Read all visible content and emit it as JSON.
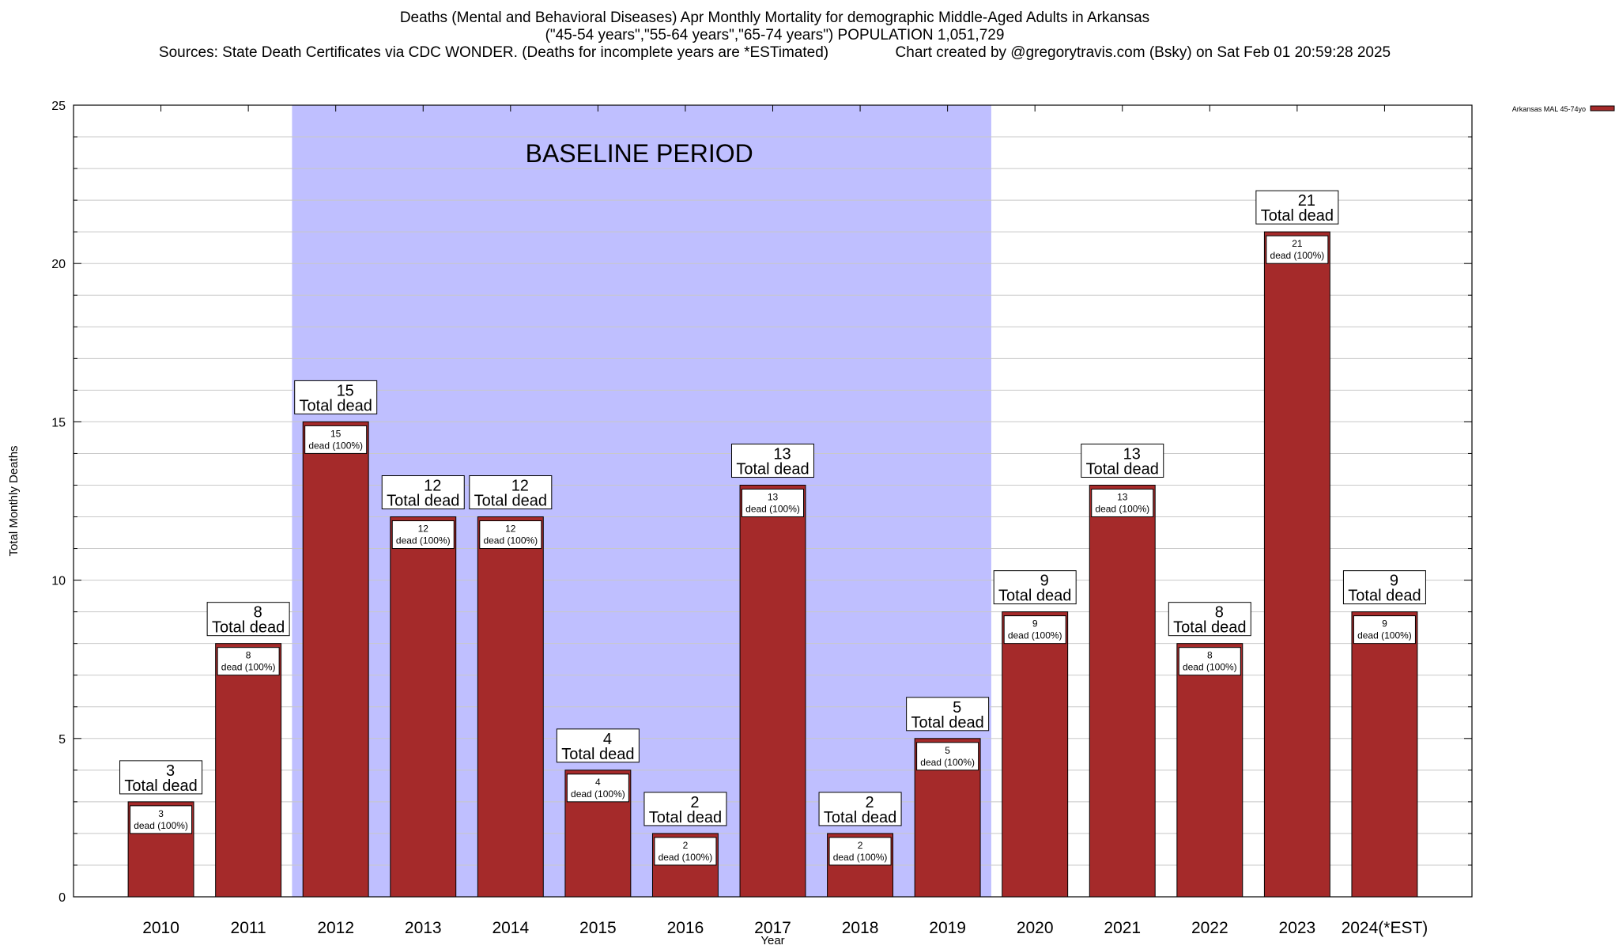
{
  "header": {
    "title_line1": "Deaths (Mental and Behavioral Diseases) Apr Monthly Mortality for demographic Middle-Aged Adults in Arkansas",
    "title_line2": "(\"45-54 years\",\"55-64 years\",\"65-74 years\") POPULATION 1,051,729",
    "title_line3": "Sources: State Death Certificates via CDC WONDER. (Deaths for incomplete years are *ESTimated)                Chart created by @gregorytravis.com (Bsky) on Sat Feb 01 20:59:28 2025"
  },
  "chart_data": {
    "type": "bar",
    "categories": [
      "2010",
      "2011",
      "2012",
      "2013",
      "2014",
      "2015",
      "2016",
      "2017",
      "2018",
      "2019",
      "2020",
      "2021",
      "2022",
      "2023",
      "2024(*EST)"
    ],
    "series": [
      {
        "name": "Arkansas MAL 45-74yo",
        "color": "#a52a2a",
        "values": [
          3,
          8,
          15,
          12,
          12,
          4,
          2,
          13,
          2,
          5,
          9,
          13,
          8,
          21,
          9
        ]
      }
    ],
    "xlabel": "Year",
    "ylabel": "Total Monthly Deaths",
    "ylim": [
      0,
      25
    ],
    "yticks": [
      0,
      5,
      10,
      15,
      20,
      25
    ],
    "grid": true,
    "legend_position": "top-right",
    "total_label_suffix": "Total dead",
    "inner_label_suffix": "dead (100%)",
    "baseline": {
      "label": "BASELINE PERIOD",
      "from": "2012",
      "to": "2019",
      "color": "#bfbfff"
    },
    "colors": {
      "bar": "#a52a2a",
      "baseline_band": "#bfbfff",
      "grid": "#c8c8c8"
    }
  }
}
